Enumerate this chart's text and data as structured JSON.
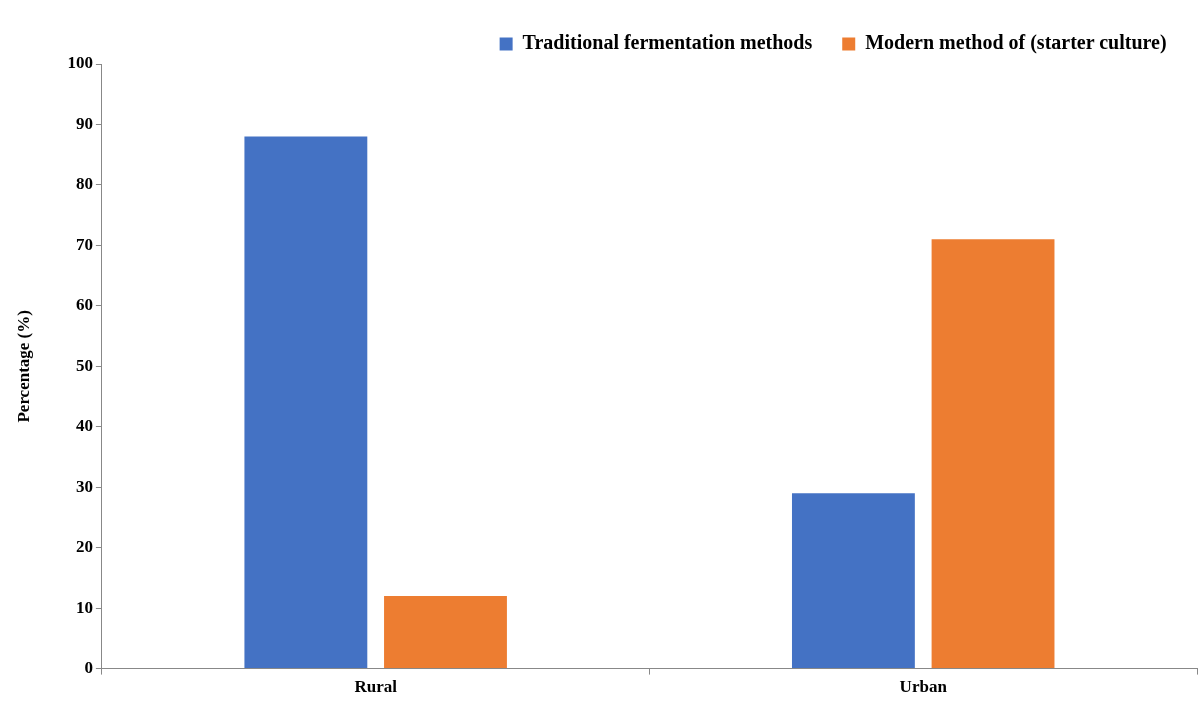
{
  "chart_data": {
    "type": "bar",
    "ylabel": "Percentage (%)",
    "categories": [
      "Rural",
      "Urban"
    ],
    "series": [
      {
        "name": "Traditional fermentation methods",
        "color": "#4472c4",
        "values": [
          88,
          29
        ]
      },
      {
        "name": "Modern method of (starter culture)",
        "color": "#ed7d31",
        "values": [
          12,
          71
        ]
      }
    ],
    "ylim": [
      0,
      100
    ],
    "yticks": [
      0,
      10,
      20,
      30,
      40,
      50,
      60,
      70,
      80,
      90,
      100
    ],
    "grid": false,
    "legend": "top right"
  }
}
